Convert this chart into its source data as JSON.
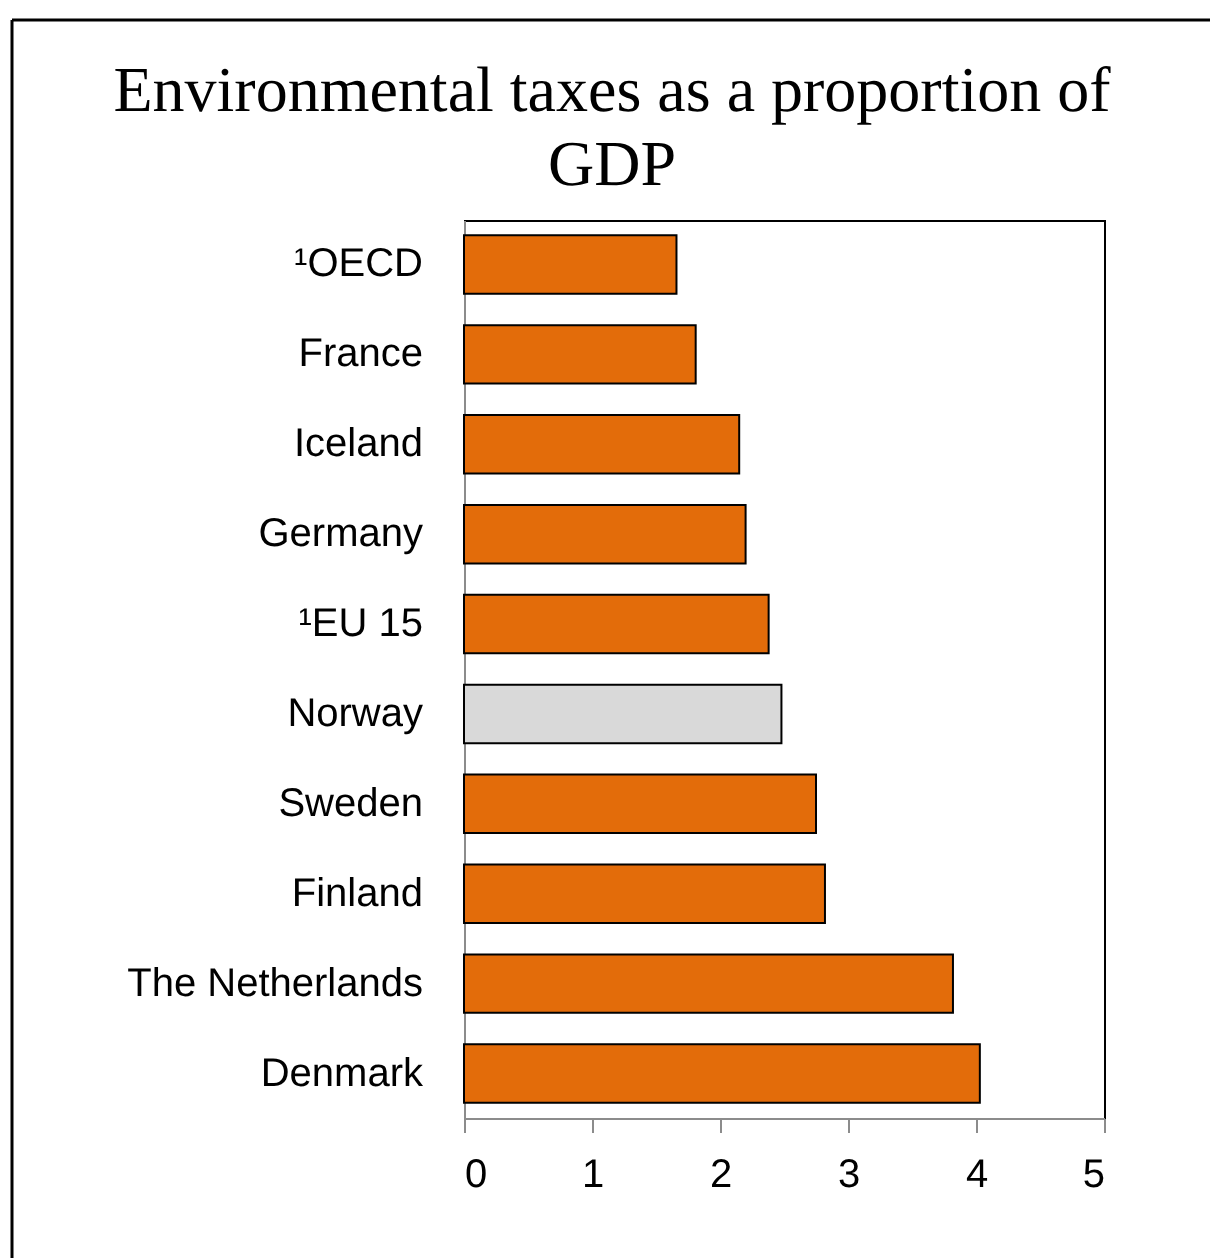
{
  "chart_data": {
    "type": "bar",
    "orientation": "horizontal",
    "title": "Environmental taxes as a proportion of GDP",
    "categories": [
      "¹OECD",
      "France",
      "Iceland",
      "Germany",
      "¹EU 15",
      "Norway",
      "Sweden",
      "Finland",
      "The Netherlands",
      "Denmark"
    ],
    "values": [
      1.66,
      1.81,
      2.15,
      2.2,
      2.38,
      2.48,
      2.75,
      2.82,
      3.82,
      4.03
    ],
    "colors": [
      "#e36c0a",
      "#e36c0a",
      "#e36c0a",
      "#e36c0a",
      "#e36c0a",
      "#d9d9d9",
      "#e36c0a",
      "#e36c0a",
      "#e36c0a",
      "#e36c0a"
    ],
    "xlim": [
      0,
      5
    ],
    "xticks": [
      0,
      1,
      2,
      3,
      4,
      5
    ],
    "grid": false,
    "legend": false
  }
}
